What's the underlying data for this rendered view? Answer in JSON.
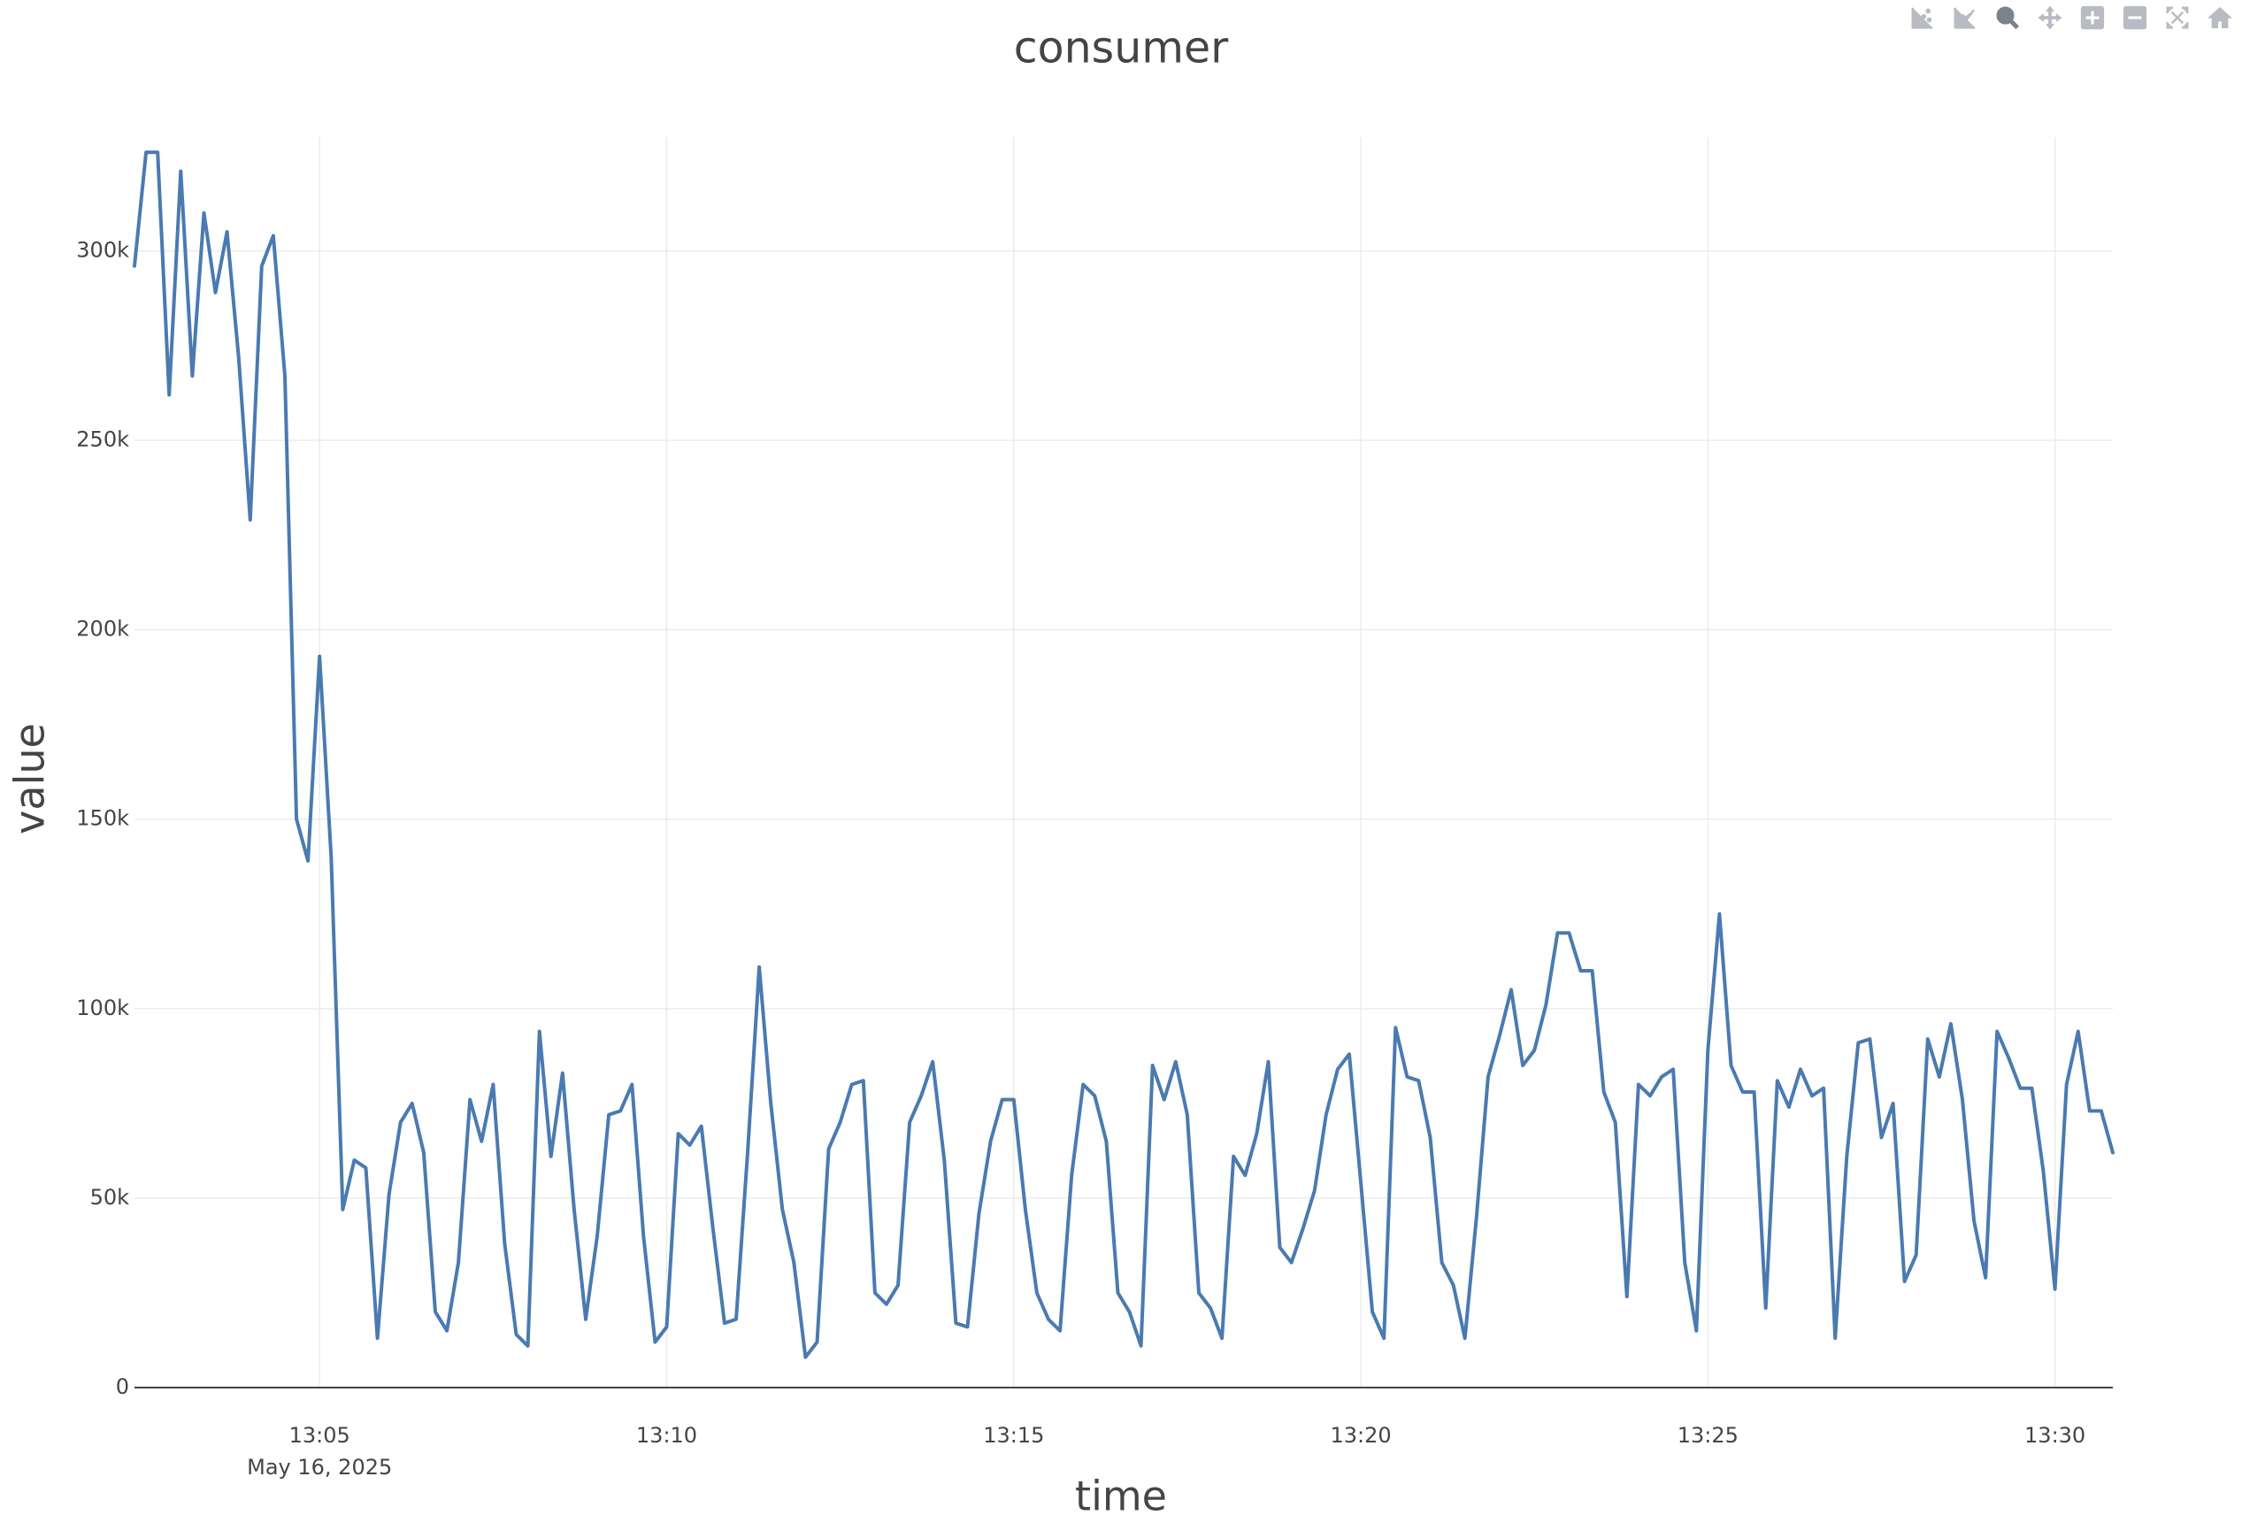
{
  "modebar": {
    "buttons": [
      {
        "name": "compare-data-icon"
      },
      {
        "name": "show-closest-data-icon"
      },
      {
        "name": "zoom-icon",
        "active": true
      },
      {
        "name": "pan-icon"
      },
      {
        "name": "zoom-in-icon"
      },
      {
        "name": "zoom-out-icon"
      },
      {
        "name": "autoscale-icon"
      },
      {
        "name": "reset-axes-icon"
      }
    ]
  },
  "colors": {
    "line": "#4a7ab0",
    "grid": "#ececec",
    "axis": "#444444",
    "text": "#444444"
  },
  "chart_data": {
    "type": "line",
    "title": "consumer",
    "xlabel": "time",
    "ylabel": "value",
    "x_start": "13:02:20",
    "x_step_seconds": 10,
    "xlim": [
      "13:02:20",
      "13:30:50"
    ],
    "ylim": [
      0,
      330000
    ],
    "x_ticks": [
      {
        "label": "13:05",
        "sublabel": "May 16, 2025",
        "time": "13:05:00"
      },
      {
        "label": "13:10",
        "time": "13:10:00"
      },
      {
        "label": "13:15",
        "time": "13:15:00"
      },
      {
        "label": "13:20",
        "time": "13:20:00"
      },
      {
        "label": "13:25",
        "time": "13:25:00"
      },
      {
        "label": "13:30",
        "time": "13:30:00"
      }
    ],
    "y_ticks": [
      {
        "label": "0",
        "value": 0
      },
      {
        "label": "50k",
        "value": 50000
      },
      {
        "label": "100k",
        "value": 100000
      },
      {
        "label": "150k",
        "value": 150000
      },
      {
        "label": "200k",
        "value": 200000
      },
      {
        "label": "250k",
        "value": 250000
      },
      {
        "label": "300k",
        "value": 300000
      }
    ],
    "grid": true,
    "series": [
      {
        "values": [
          296000,
          326000,
          326000,
          262000,
          321000,
          267000,
          310000,
          289000,
          305000,
          272000,
          229000,
          296000,
          304000,
          267000,
          150000,
          139000,
          193000,
          140000,
          47000,
          60000,
          58000,
          13000,
          51000,
          70000,
          75000,
          62000,
          20000,
          15000,
          33000,
          76000,
          65000,
          80000,
          38000,
          14000,
          11000,
          94000,
          61000,
          83000,
          47000,
          18000,
          40000,
          72000,
          73000,
          80000,
          40000,
          12000,
          16000,
          67000,
          64000,
          69000,
          42000,
          17000,
          18000,
          62000,
          111000,
          75000,
          47000,
          33000,
          8000,
          12000,
          63000,
          70000,
          80000,
          81000,
          25000,
          22000,
          27000,
          70000,
          77000,
          86000,
          60000,
          17000,
          16000,
          46000,
          65000,
          76000,
          76000,
          47000,
          25000,
          18000,
          15000,
          56000,
          80000,
          77000,
          65000,
          25000,
          20000,
          11000,
          85000,
          76000,
          86000,
          72000,
          25000,
          21000,
          13000,
          61000,
          56000,
          67000,
          86000,
          37000,
          33000,
          42000,
          52000,
          72000,
          84000,
          88000,
          54000,
          20000,
          13000,
          95000,
          82000,
          81000,
          66000,
          33000,
          27000,
          13000,
          45000,
          82000,
          93000,
          105000,
          85000,
          89000,
          101000,
          120000,
          120000,
          110000,
          110000,
          78000,
          70000,
          24000,
          80000,
          77000,
          82000,
          84000,
          33000,
          15000,
          89000,
          125000,
          85000,
          78000,
          78000,
          21000,
          81000,
          74000,
          84000,
          77000,
          79000,
          13000,
          61000,
          91000,
          92000,
          66000,
          75000,
          28000,
          35000,
          92000,
          82000,
          96000,
          76000,
          44000,
          29000,
          94000,
          87000,
          79000,
          79000,
          57000,
          26000,
          80000,
          94000,
          73000,
          73000,
          62000
        ]
      }
    ]
  }
}
